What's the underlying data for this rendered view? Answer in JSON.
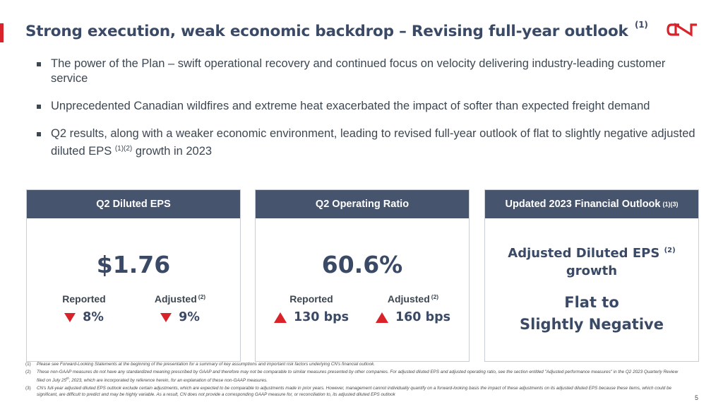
{
  "slide": {
    "title": "Strong execution, weak economic backdrop – Revising full-year outlook",
    "title_ref": "(1)",
    "page_number": "5"
  },
  "logo": {
    "text": "CN",
    "color": "#d8232a"
  },
  "bullets": [
    {
      "text": "The power of the Plan – swift operational recovery and continued focus on velocity delivering industry-leading customer service"
    },
    {
      "text": "Unprecedented Canadian wildfires and extreme heat exacerbated the impact of softer than expected freight demand"
    },
    {
      "text_before": "Q2 results, along with a weaker economic environment, leading to revised full-year outlook of flat to slightly negative adjusted diluted EPS ",
      "ref": "(1)(2)",
      "text_after": " growth in 2023"
    }
  ],
  "cards": {
    "eps": {
      "header": "Q2 Diluted EPS",
      "value": "$1.76",
      "reported_label": "Reported",
      "reported_value": "8%",
      "reported_direction": "down",
      "adjusted_label": "Adjusted",
      "adjusted_ref": "(2)",
      "adjusted_value": "9%",
      "adjusted_direction": "down"
    },
    "ratio": {
      "header": "Q2 Operating Ratio",
      "value": "60.6%",
      "reported_label": "Reported",
      "reported_value": "130 bps",
      "reported_direction": "up",
      "adjusted_label": "Adjusted",
      "adjusted_ref": "(2)",
      "adjusted_value": "160 bps",
      "adjusted_direction": "up"
    },
    "outlook": {
      "header": "Updated 2023 Financial Outlook",
      "header_ref": "(1)(3)",
      "metric_line1": "Adjusted Diluted EPS",
      "metric_ref": "(2)",
      "metric_line2": "growth",
      "value_line1": "Flat to",
      "value_line2": "Slightly Negative"
    }
  },
  "colors": {
    "accent": "#d8232a",
    "header_bg": "#46546d",
    "title": "#3a4a66"
  },
  "footnotes": [
    {
      "num": "(1)",
      "text": "Please see Forward-Looking Statements at the beginning of the presentation for a summary of key assumptions and important risk factors underlying CN's financial outlook."
    },
    {
      "num": "(2)",
      "text_before": "These non-GAAP measures do not have any standardized meaning prescribed by GAAP and therefore may not be comparable to similar measures presented by other companies. For adjusted diluted EPS and adjusted operating ratio, see the section entitled \"Adjusted performance measures\" in the Q2 2023 Quarterly Review filed on July 25",
      "sup": "th",
      "text_after": ", 2023, which are incorporated by reference herein, for an explanation of these non-GAAP measures."
    },
    {
      "num": "(3)",
      "text": "CN's full-year adjusted diluted EPS outlook exclude certain adjustments, which are expected to be comparable to adjustments made in prior years. However, management cannot individually quantify on a forward-looking basis the impact of these adjustments on its adjusted diluted EPS because these items, which could be significant, are difficult to predict and may be highly variable. As a result, CN does not provide a corresponding GAAP measure for, or reconciliation to, its adjusted diluted EPS outlook"
    }
  ]
}
